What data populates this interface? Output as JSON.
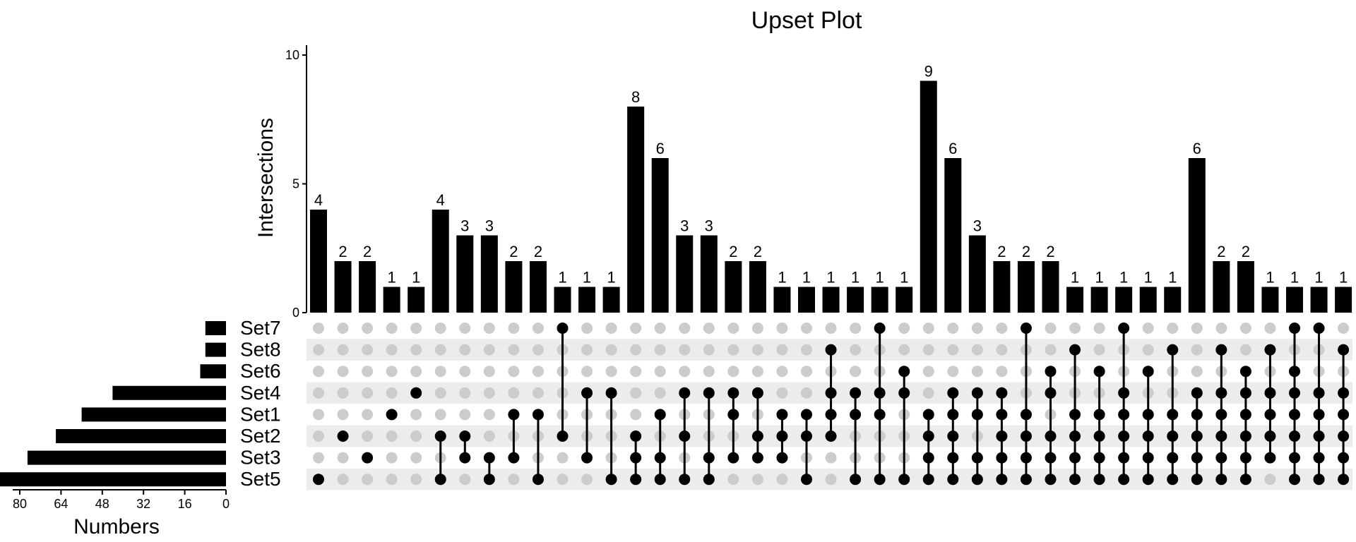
{
  "chart_data": {
    "type": "upset",
    "title": "Upset Plot",
    "intersection_axis": {
      "label": "Intersections",
      "ylim": [
        0,
        10
      ],
      "ticks": [
        0,
        5,
        10
      ]
    },
    "set_size_axis": {
      "label": "Numbers",
      "xlim": [
        0,
        80
      ],
      "ticks": [
        80,
        64,
        48,
        32,
        16,
        0
      ]
    },
    "sets": [
      "Set7",
      "Set8",
      "Set6",
      "Set4",
      "Set1",
      "Set2",
      "Set3",
      "Set5"
    ],
    "set_sizes": [
      8,
      8,
      10,
      44,
      56,
      66,
      77,
      89
    ],
    "intersections": [
      {
        "sets": [
          "Set5"
        ],
        "value": 4
      },
      {
        "sets": [
          "Set2"
        ],
        "value": 2
      },
      {
        "sets": [
          "Set3"
        ],
        "value": 2
      },
      {
        "sets": [
          "Set1"
        ],
        "value": 1
      },
      {
        "sets": [
          "Set4"
        ],
        "value": 1
      },
      {
        "sets": [
          "Set2",
          "Set5"
        ],
        "value": 4
      },
      {
        "sets": [
          "Set2",
          "Set3"
        ],
        "value": 3
      },
      {
        "sets": [
          "Set3",
          "Set5"
        ],
        "value": 3
      },
      {
        "sets": [
          "Set1",
          "Set3"
        ],
        "value": 2
      },
      {
        "sets": [
          "Set1",
          "Set5"
        ],
        "value": 2
      },
      {
        "sets": [
          "Set7",
          "Set2"
        ],
        "value": 1
      },
      {
        "sets": [
          "Set4",
          "Set3"
        ],
        "value": 1
      },
      {
        "sets": [
          "Set4",
          "Set5"
        ],
        "value": 1
      },
      {
        "sets": [
          "Set2",
          "Set3",
          "Set5"
        ],
        "value": 8
      },
      {
        "sets": [
          "Set1",
          "Set3",
          "Set5"
        ],
        "value": 6
      },
      {
        "sets": [
          "Set4",
          "Set2",
          "Set5"
        ],
        "value": 3
      },
      {
        "sets": [
          "Set4",
          "Set3",
          "Set5"
        ],
        "value": 3
      },
      {
        "sets": [
          "Set4",
          "Set1",
          "Set3"
        ],
        "value": 2
      },
      {
        "sets": [
          "Set4",
          "Set2",
          "Set3"
        ],
        "value": 2
      },
      {
        "sets": [
          "Set1",
          "Set2",
          "Set3"
        ],
        "value": 1
      },
      {
        "sets": [
          "Set1",
          "Set2",
          "Set5"
        ],
        "value": 1
      },
      {
        "sets": [
          "Set8",
          "Set4",
          "Set1",
          "Set2"
        ],
        "value": 1
      },
      {
        "sets": [
          "Set4",
          "Set1",
          "Set5"
        ],
        "value": 1
      },
      {
        "sets": [
          "Set7",
          "Set4",
          "Set1",
          "Set5"
        ],
        "value": 1
      },
      {
        "sets": [
          "Set6",
          "Set4",
          "Set5"
        ],
        "value": 1
      },
      {
        "sets": [
          "Set1",
          "Set2",
          "Set3",
          "Set5"
        ],
        "value": 9
      },
      {
        "sets": [
          "Set4",
          "Set1",
          "Set2",
          "Set3",
          "Set5"
        ],
        "value": 6
      },
      {
        "sets": [
          "Set4",
          "Set1",
          "Set3",
          "Set5"
        ],
        "value": 3
      },
      {
        "sets": [
          "Set4",
          "Set1",
          "Set2",
          "Set3",
          "Set5"
        ],
        "value": 2
      },
      {
        "sets": [
          "Set7",
          "Set1",
          "Set2",
          "Set3",
          "Set5"
        ],
        "value": 2
      },
      {
        "sets": [
          "Set6",
          "Set4",
          "Set2",
          "Set3",
          "Set5"
        ],
        "value": 2
      },
      {
        "sets": [
          "Set8",
          "Set1",
          "Set2",
          "Set3",
          "Set5"
        ],
        "value": 1
      },
      {
        "sets": [
          "Set6",
          "Set1",
          "Set2",
          "Set3",
          "Set5"
        ],
        "value": 1
      },
      {
        "sets": [
          "Set7",
          "Set4",
          "Set1",
          "Set2",
          "Set3",
          "Set5"
        ],
        "value": 1
      },
      {
        "sets": [
          "Set6",
          "Set1",
          "Set2",
          "Set3",
          "Set5"
        ],
        "value": 1
      },
      {
        "sets": [
          "Set8",
          "Set1",
          "Set2",
          "Set3",
          "Set5"
        ],
        "value": 1
      },
      {
        "sets": [
          "Set4",
          "Set1",
          "Set2",
          "Set3",
          "Set5"
        ],
        "value": 6
      },
      {
        "sets": [
          "Set8",
          "Set4",
          "Set1",
          "Set2",
          "Set3",
          "Set5"
        ],
        "value": 2
      },
      {
        "sets": [
          "Set6",
          "Set4",
          "Set1",
          "Set2",
          "Set3",
          "Set5"
        ],
        "value": 2
      },
      {
        "sets": [
          "Set8",
          "Set4",
          "Set1",
          "Set2",
          "Set3"
        ],
        "value": 1
      },
      {
        "sets": [
          "Set7",
          "Set6",
          "Set4",
          "Set1",
          "Set2",
          "Set3",
          "Set5"
        ],
        "value": 1
      },
      {
        "sets": [
          "Set7",
          "Set4",
          "Set1",
          "Set2",
          "Set3",
          "Set5"
        ],
        "value": 1
      },
      {
        "sets": [
          "Set8",
          "Set4",
          "Set1",
          "Set2",
          "Set3",
          "Set5"
        ],
        "value": 1
      }
    ],
    "colors": {
      "bar": "#000000",
      "dot_active": "#000000",
      "dot_inactive": "#cccccc",
      "stripe": "#ececec"
    }
  }
}
